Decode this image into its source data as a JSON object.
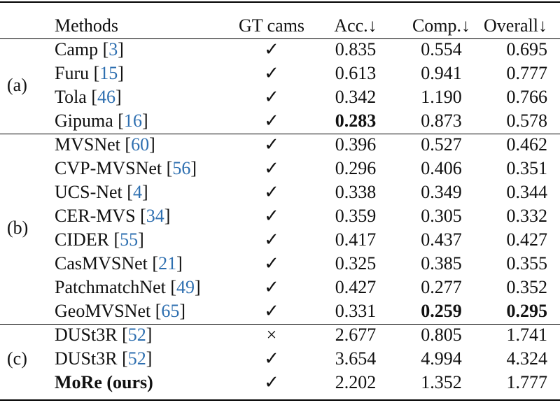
{
  "headers": {
    "group": "",
    "method": "Methods",
    "gt": "GT cams",
    "acc": "Acc.↓",
    "comp": "Comp.↓",
    "overall": "Overall↓"
  },
  "groups": [
    {
      "label": "(a)",
      "rows": [
        {
          "name": "Camp",
          "ref": "3",
          "gt": "✓",
          "acc": "0.835",
          "comp": "0.554",
          "overall": "0.695"
        },
        {
          "name": "Furu",
          "ref": "15",
          "gt": "✓",
          "acc": "0.613",
          "comp": "0.941",
          "overall": "0.777"
        },
        {
          "name": "Tola",
          "ref": "46",
          "gt": "✓",
          "acc": "0.342",
          "comp": "1.190",
          "overall": "0.766"
        },
        {
          "name": "Gipuma",
          "ref": "16",
          "gt": "✓",
          "acc": "0.283",
          "comp": "0.873",
          "overall": "0.578",
          "bold": [
            "acc"
          ]
        }
      ]
    },
    {
      "label": "(b)",
      "rows": [
        {
          "name": "MVSNet",
          "ref": "60",
          "gt": "✓",
          "acc": "0.396",
          "comp": "0.527",
          "overall": "0.462"
        },
        {
          "name": "CVP-MVSNet",
          "ref": "56",
          "gt": "✓",
          "acc": "0.296",
          "comp": "0.406",
          "overall": "0.351"
        },
        {
          "name": "UCS-Net",
          "ref": "4",
          "gt": "✓",
          "acc": "0.338",
          "comp": "0.349",
          "overall": "0.344"
        },
        {
          "name": "CER-MVS",
          "ref": "34",
          "gt": "✓",
          "acc": "0.359",
          "comp": "0.305",
          "overall": "0.332"
        },
        {
          "name": "CIDER",
          "ref": "55",
          "gt": "✓",
          "acc": "0.417",
          "comp": "0.437",
          "overall": "0.427"
        },
        {
          "name": "CasMVSNet",
          "ref": "21",
          "gt": "✓",
          "acc": "0.325",
          "comp": "0.385",
          "overall": "0.355"
        },
        {
          "name": "PatchmatchNet",
          "ref": "49",
          "gt": "✓",
          "acc": "0.427",
          "comp": "0.277",
          "overall": "0.352"
        },
        {
          "name": "GeoMVSNet",
          "ref": "65",
          "gt": "✓",
          "acc": "0.331",
          "comp": "0.259",
          "overall": "0.295",
          "bold": [
            "comp",
            "overall"
          ]
        }
      ]
    },
    {
      "label": "(c)",
      "rows": [
        {
          "name": "DUSt3R",
          "ref": "52",
          "gt": "×",
          "acc": "2.677",
          "comp": "0.805",
          "overall": "1.741"
        },
        {
          "name": "DUSt3R",
          "ref": "52",
          "gt": "✓",
          "acc": "3.654",
          "comp": "4.994",
          "overall": "4.324"
        },
        {
          "name": "MoRe (ours)",
          "ref": "",
          "gt": "✓",
          "acc": "2.202",
          "comp": "1.352",
          "overall": "1.777",
          "bold": [
            "name"
          ]
        }
      ]
    }
  ],
  "colors": {
    "reference": "#2e6fb0",
    "text": "#111111",
    "rule": "#000000"
  }
}
